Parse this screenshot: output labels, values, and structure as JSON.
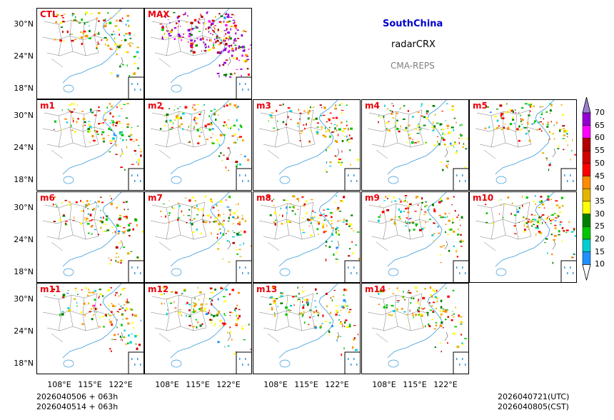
{
  "chart_data": {
    "type": "heatmap",
    "region": "SouthChina",
    "variable": "radarCRX",
    "system": "CMA-REPS",
    "panels": [
      "CTL",
      "MAX",
      "m1",
      "m2",
      "m3",
      "m4",
      "m5",
      "m6",
      "m7",
      "m8",
      "m9",
      "m10",
      "m11",
      "m12",
      "m13",
      "m14"
    ],
    "yticks": [
      "30°N",
      "24°N",
      "18°N"
    ],
    "xticks": [
      "108°E",
      "115°E",
      "122°E"
    ],
    "colorbar": {
      "levels": [
        10,
        15,
        20,
        25,
        30,
        35,
        40,
        45,
        50,
        55,
        60,
        65,
        70
      ],
      "colors": [
        "#1e90ff",
        "#00ced1",
        "#00c800",
        "#008000",
        "#ffff00",
        "#e6b400",
        "#ff8c00",
        "#ff0000",
        "#d20000",
        "#b40000",
        "#ff00ff",
        "#9400d3",
        "#9b7fd4"
      ],
      "extend": "both"
    }
  },
  "footer": {
    "init_utc": "2026040506  +  063h",
    "init_cst": "2026040514  +  063h",
    "valid_utc": "2026040721(UTC)",
    "valid_cst": "2026040805(CST)"
  }
}
